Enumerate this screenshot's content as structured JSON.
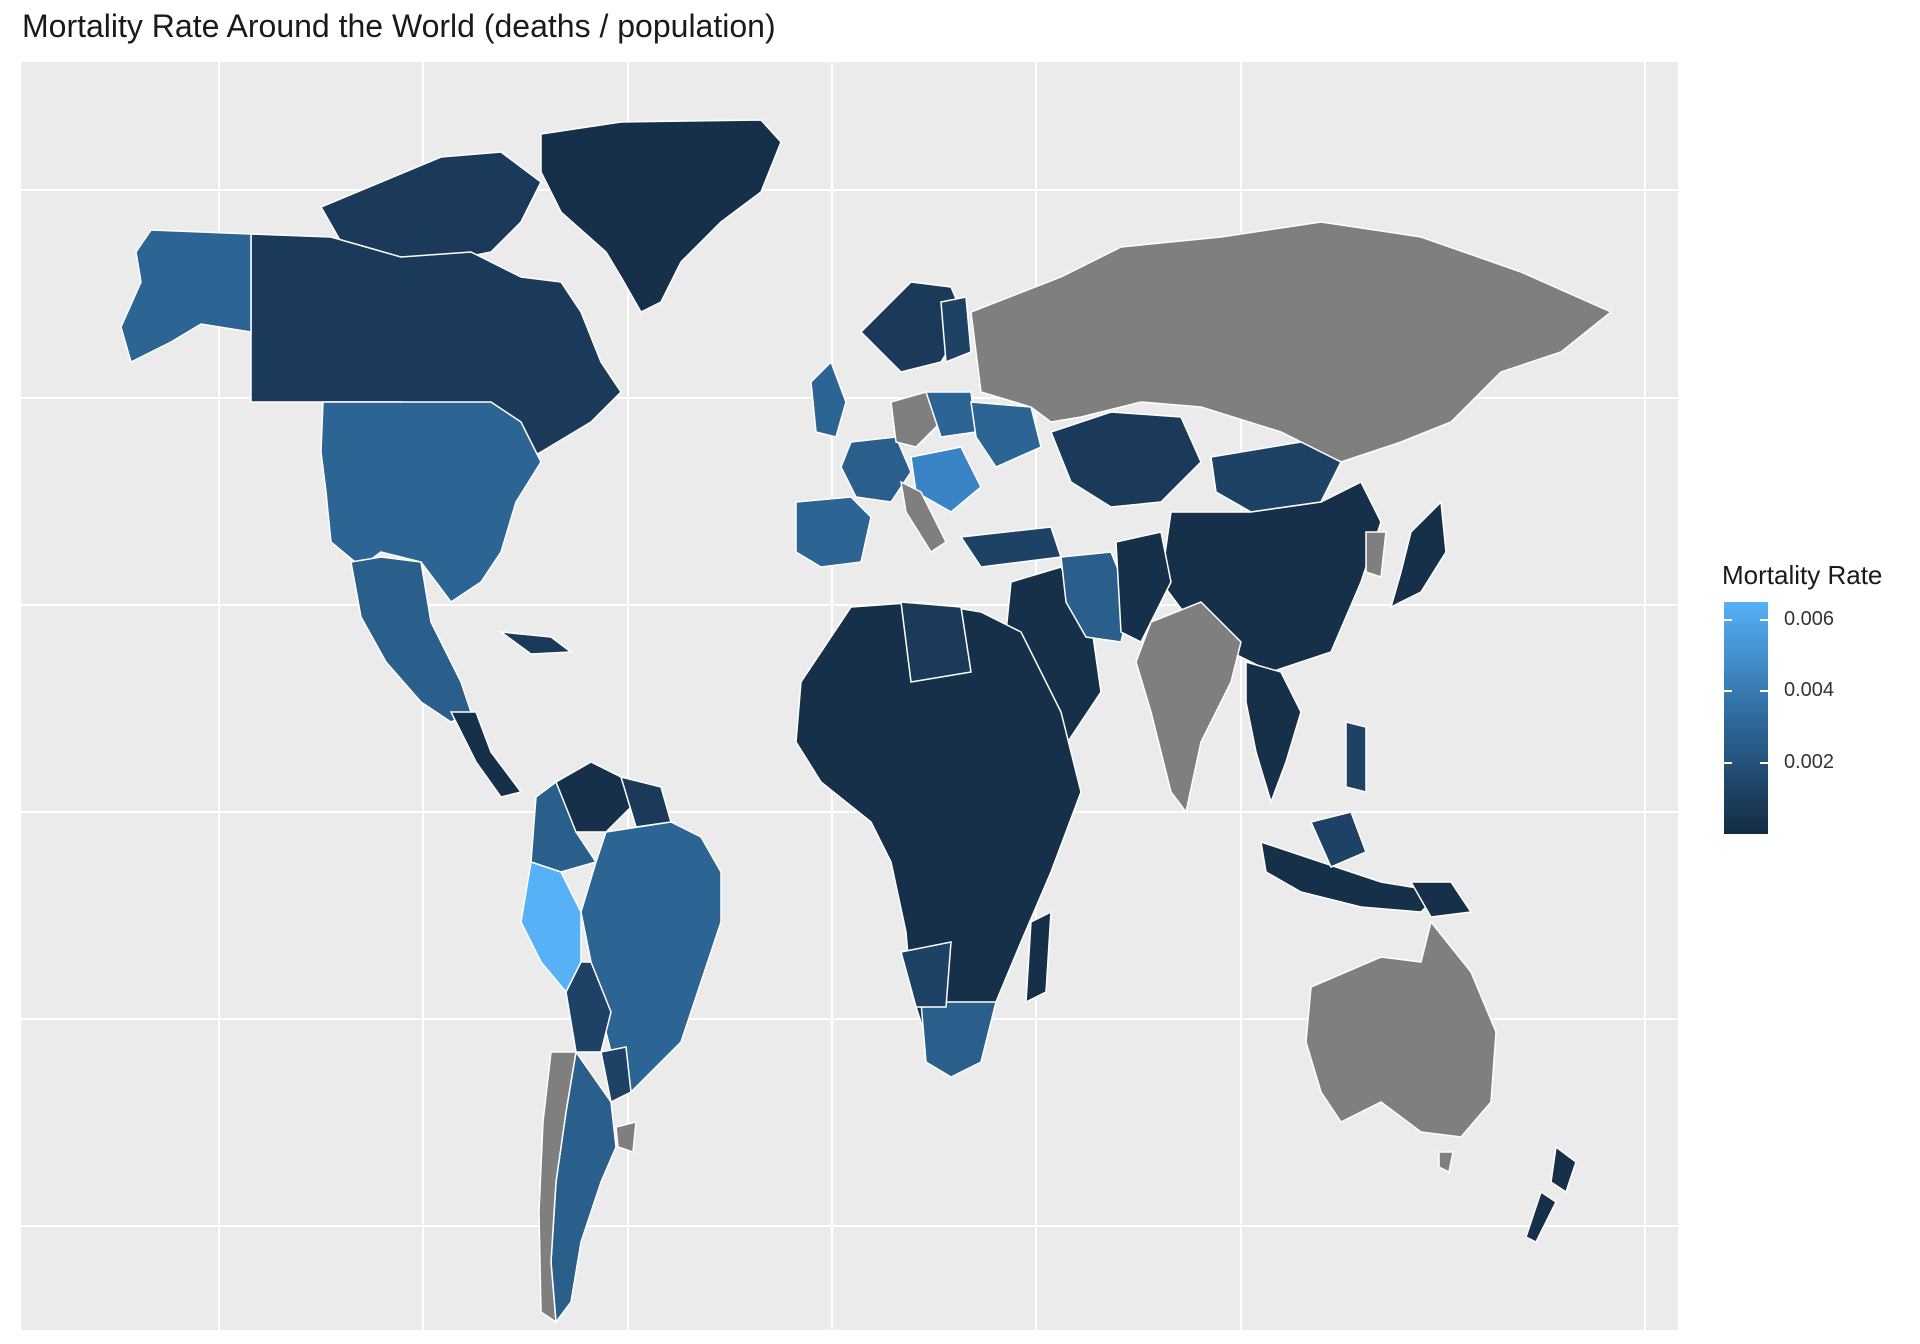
{
  "title": "Mortality Rate Around the World (deaths / population)",
  "legend": {
    "title": "Mortality Rate",
    "ticks": [
      {
        "label": "0.006",
        "value": 0.006
      },
      {
        "label": "0.004",
        "value": 0.004
      },
      {
        "label": "0.002",
        "value": 0.002
      }
    ],
    "range": [
      0.0,
      0.0065
    ],
    "colors": {
      "low": "#132b43",
      "high": "#56b1f7",
      "na": "#7f7f7f"
    }
  },
  "map": {
    "background": "#ebebeb",
    "grid_color": "#ffffff",
    "border_color": "#ffffff",
    "regions": [
      {
        "name": "Greenland",
        "shade": "low"
      },
      {
        "name": "Canada",
        "shade": "mid-low"
      },
      {
        "name": "Alaska",
        "shade": "mid"
      },
      {
        "name": "United States",
        "shade": "mid"
      },
      {
        "name": "Mexico",
        "shade": "mid"
      },
      {
        "name": "Central America",
        "shade": "low"
      },
      {
        "name": "Colombia",
        "shade": "mid"
      },
      {
        "name": "Venezuela",
        "shade": "low"
      },
      {
        "name": "Peru",
        "shade": "high"
      },
      {
        "name": "Brazil",
        "shade": "mid"
      },
      {
        "name": "Bolivia",
        "shade": "mid-low"
      },
      {
        "name": "Argentina",
        "shade": "mid"
      },
      {
        "name": "Chile",
        "shade": "na"
      },
      {
        "name": "Africa",
        "shade": "low"
      },
      {
        "name": "South Africa",
        "shade": "mid"
      },
      {
        "name": "Madagascar",
        "shade": "low"
      },
      {
        "name": "Europe",
        "shade": "mid"
      },
      {
        "name": "Russia",
        "shade": "na"
      },
      {
        "name": "Kazakhstan",
        "shade": "low"
      },
      {
        "name": "Middle East",
        "shade": "low"
      },
      {
        "name": "Iran",
        "shade": "mid"
      },
      {
        "name": "India",
        "shade": "na"
      },
      {
        "name": "China",
        "shade": "low"
      },
      {
        "name": "Mongolia",
        "shade": "mid-low"
      },
      {
        "name": "Southeast Asia",
        "shade": "low"
      },
      {
        "name": "Indonesia",
        "shade": "low"
      },
      {
        "name": "Japan",
        "shade": "low"
      },
      {
        "name": "Australia",
        "shade": "na"
      },
      {
        "name": "New Zealand",
        "shade": "low"
      }
    ]
  }
}
